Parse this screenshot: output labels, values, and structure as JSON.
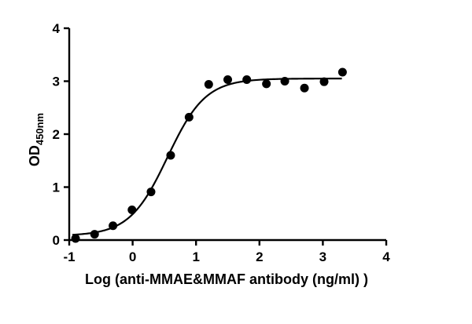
{
  "chart_data": {
    "type": "scatter",
    "title": "",
    "xlabel": "Log (anti-MMAE&MMAF antibody (ng/ml) )",
    "ylabel": "OD",
    "ylabel_subscript": "450nm",
    "xlim": [
      -1,
      4
    ],
    "ylim": [
      0,
      4
    ],
    "x_ticks": [
      -1,
      0,
      1,
      2,
      3,
      4
    ],
    "y_ticks": [
      0,
      1,
      2,
      3,
      4
    ],
    "grid": false,
    "legend": null,
    "series": [
      {
        "name": "OD450nm",
        "marker": "circle",
        "color": "#000000",
        "x": [
          -0.9,
          -0.6,
          -0.31,
          -0.01,
          0.29,
          0.6,
          0.89,
          1.2,
          1.5,
          1.8,
          2.11,
          2.4,
          2.71,
          3.02,
          3.31
        ],
        "y": [
          0.03,
          0.11,
          0.27,
          0.57,
          0.91,
          1.6,
          2.32,
          2.94,
          3.03,
          3.03,
          2.95,
          3.0,
          2.87,
          2.99,
          3.17
        ]
      }
    ],
    "fit": {
      "type": "4PL sigmoid",
      "bottom": 0.08,
      "top": 3.05,
      "log_ec50": 0.55,
      "hill_slope": 1.45,
      "x_range": [
        -0.95,
        3.3
      ]
    }
  }
}
